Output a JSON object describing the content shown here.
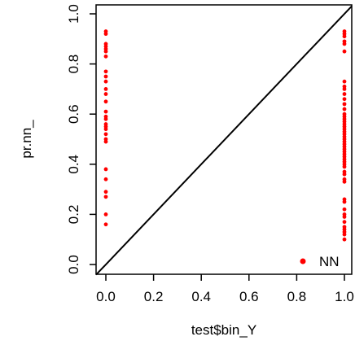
{
  "chart_data": {
    "type": "scatter",
    "xlabel": "test$bin_Y",
    "ylabel": "pr.nn_",
    "xlim": [
      0.0,
      1.0
    ],
    "ylim": [
      0.0,
      1.0
    ],
    "xticks": [
      "0.0",
      "0.2",
      "0.4",
      "0.6",
      "0.8",
      "1.0"
    ],
    "yticks": [
      "0.0",
      "0.2",
      "0.4",
      "0.6",
      "0.8",
      "1.0"
    ],
    "grid": false,
    "legend": {
      "position": "bottom-right",
      "entries": [
        "NN"
      ]
    },
    "reference_line": {
      "from": [
        0.0,
        0.0
      ],
      "to": [
        1.0,
        1.0
      ],
      "color": "#000000"
    },
    "series": [
      {
        "name": "NN",
        "color": "#ff0000",
        "points": [
          [
            0,
            0.93
          ],
          [
            0,
            0.92
          ],
          [
            0,
            0.88
          ],
          [
            0,
            0.87
          ],
          [
            0,
            0.86
          ],
          [
            0,
            0.85
          ],
          [
            0,
            0.83
          ],
          [
            0,
            0.77
          ],
          [
            0,
            0.75
          ],
          [
            0,
            0.73
          ],
          [
            0,
            0.7
          ],
          [
            0,
            0.68
          ],
          [
            0,
            0.65
          ],
          [
            0,
            0.61
          ],
          [
            0,
            0.59
          ],
          [
            0,
            0.58
          ],
          [
            0,
            0.56
          ],
          [
            0,
            0.55
          ],
          [
            0,
            0.54
          ],
          [
            0,
            0.52
          ],
          [
            0,
            0.5
          ],
          [
            0,
            0.49
          ],
          [
            0,
            0.38
          ],
          [
            0,
            0.34
          ],
          [
            0,
            0.29
          ],
          [
            0,
            0.27
          ],
          [
            0,
            0.2
          ],
          [
            0,
            0.16
          ],
          [
            1,
            0.93
          ],
          [
            1,
            0.92
          ],
          [
            1,
            0.91
          ],
          [
            1,
            0.89
          ],
          [
            1,
            0.88
          ],
          [
            1,
            0.85
          ],
          [
            1,
            0.73
          ],
          [
            1,
            0.71
          ],
          [
            1,
            0.7
          ],
          [
            1,
            0.68
          ],
          [
            1,
            0.66
          ],
          [
            1,
            0.64
          ],
          [
            1,
            0.62
          ],
          [
            1,
            0.6
          ],
          [
            1,
            0.59
          ],
          [
            1,
            0.58
          ],
          [
            1,
            0.57
          ],
          [
            1,
            0.56
          ],
          [
            1,
            0.55
          ],
          [
            1,
            0.54
          ],
          [
            1,
            0.53
          ],
          [
            1,
            0.52
          ],
          [
            1,
            0.51
          ],
          [
            1,
            0.5
          ],
          [
            1,
            0.49
          ],
          [
            1,
            0.48
          ],
          [
            1,
            0.47
          ],
          [
            1,
            0.46
          ],
          [
            1,
            0.45
          ],
          [
            1,
            0.44
          ],
          [
            1,
            0.43
          ],
          [
            1,
            0.42
          ],
          [
            1,
            0.41
          ],
          [
            1,
            0.4
          ],
          [
            1,
            0.39
          ],
          [
            1,
            0.37
          ],
          [
            1,
            0.36
          ],
          [
            1,
            0.34
          ],
          [
            1,
            0.33
          ],
          [
            1,
            0.26
          ],
          [
            1,
            0.25
          ],
          [
            1,
            0.22
          ],
          [
            1,
            0.2
          ],
          [
            1,
            0.19
          ],
          [
            1,
            0.17
          ],
          [
            1,
            0.15
          ],
          [
            1,
            0.14
          ],
          [
            1,
            0.13
          ],
          [
            1,
            0.12
          ],
          [
            1,
            0.1
          ]
        ]
      }
    ]
  }
}
